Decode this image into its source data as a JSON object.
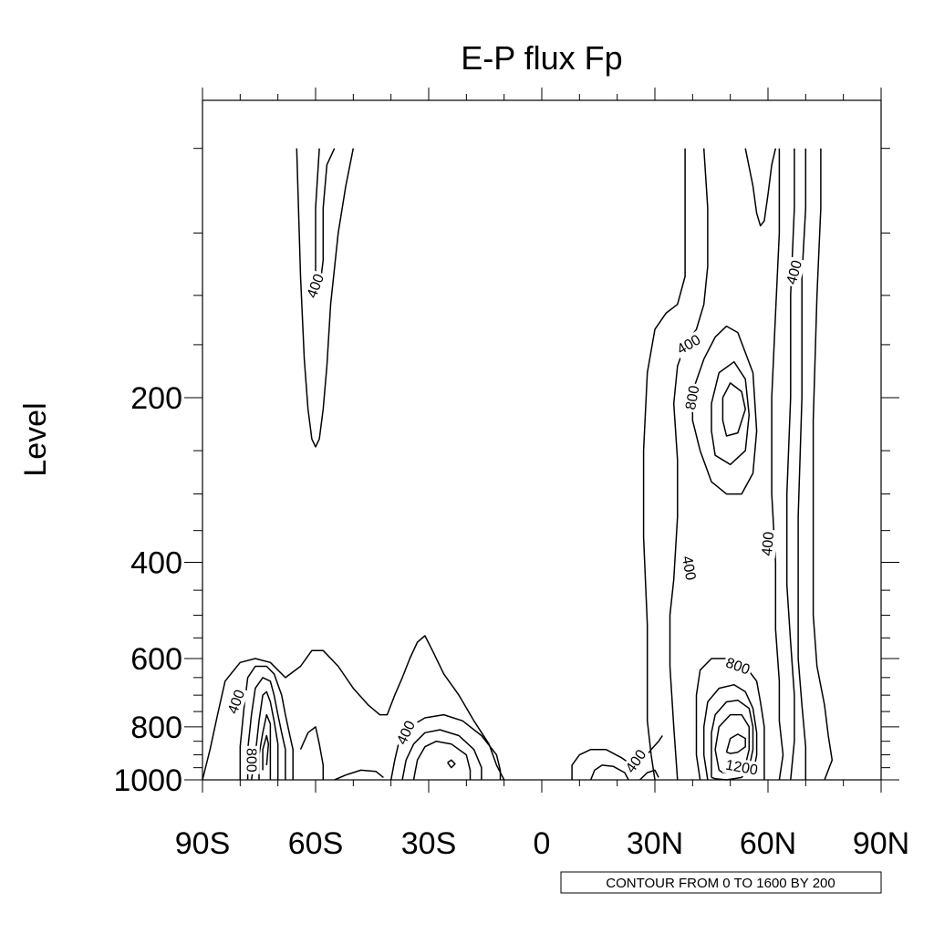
{
  "chart_data": {
    "type": "contour",
    "title": "E-P flux Fp",
    "xlabel": "",
    "ylabel": "Level",
    "x_ticks": [
      "90S",
      "60S",
      "30S",
      "0",
      "30N",
      "60N",
      "90N"
    ],
    "y_ticks": [
      "200",
      "400",
      "600",
      "800",
      "1000"
    ],
    "xlim": [
      -90,
      90
    ],
    "ylim": [
      1000,
      70
    ],
    "y_scale": "log",
    "contour_levels": {
      "from": 0,
      "to": 1600,
      "by": 200
    },
    "info_label": "CONTOUR FROM 0 TO 1600 BY 200",
    "contour_labels": [
      {
        "text": "400",
        "lat": -60,
        "p": 125,
        "angle": -70
      },
      {
        "text": "400",
        "lat": 39,
        "p": 160,
        "angle": -30
      },
      {
        "text": "800",
        "lat": 40,
        "p": 200,
        "angle": -80
      },
      {
        "text": "400",
        "lat": 67,
        "p": 118,
        "angle": -75
      },
      {
        "text": "400",
        "lat": 39,
        "p": 410,
        "angle": 80
      },
      {
        "text": "400",
        "lat": 60,
        "p": 370,
        "angle": -85
      },
      {
        "text": "800",
        "lat": 52,
        "p": 620,
        "angle": 20
      },
      {
        "text": "1200",
        "lat": 53,
        "p": 950,
        "angle": 10
      },
      {
        "text": "400",
        "lat": -81,
        "p": 720,
        "angle": -70
      },
      {
        "text": "800",
        "lat": -77,
        "p": 920,
        "angle": 90
      },
      {
        "text": "400",
        "lat": -36,
        "p": 820,
        "angle": -65
      },
      {
        "text": "400",
        "lat": 25,
        "p": 925,
        "angle": -55
      }
    ]
  }
}
